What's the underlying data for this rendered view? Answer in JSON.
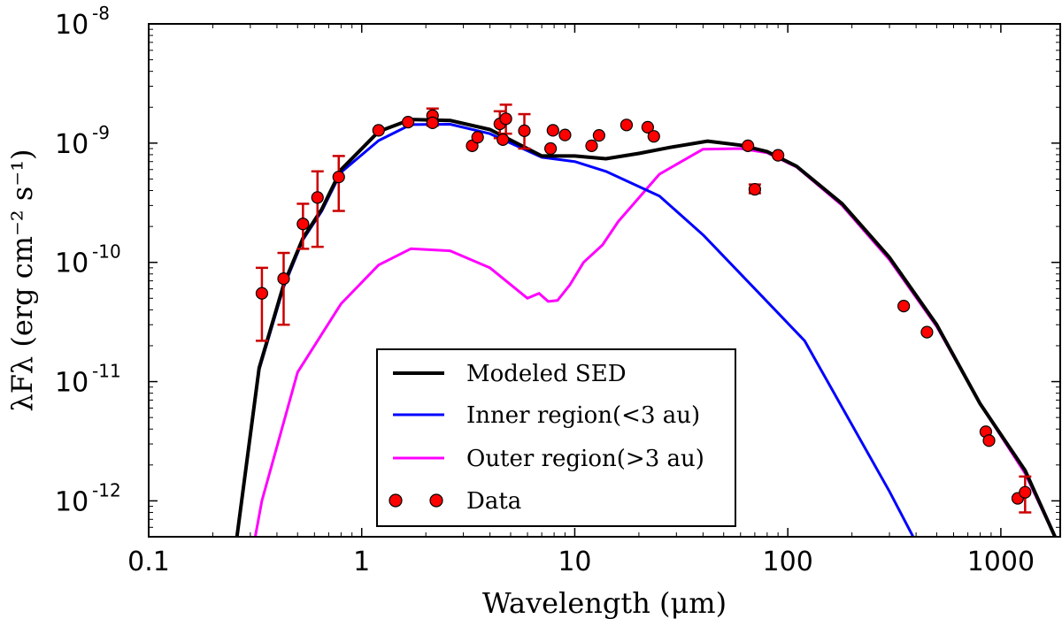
{
  "chart_data": {
    "type": "line",
    "title": "",
    "xlabel": "Wavelength (μm)",
    "ylabel": "λFλ (erg cm⁻² s⁻¹)",
    "xscale": "log",
    "yscale": "log",
    "xlim": [
      0.1,
      1900
    ],
    "ylim": [
      5e-13,
      1e-08
    ],
    "x_ticks": [
      {
        "value": 0.1,
        "label": "0.1"
      },
      {
        "value": 1,
        "label": "1"
      },
      {
        "value": 10,
        "label": "10"
      },
      {
        "value": 100,
        "label": "100"
      },
      {
        "value": 1000,
        "label": "1000"
      }
    ],
    "y_ticks": [
      {
        "value": 1e-08,
        "base": "10",
        "exp": "-8"
      },
      {
        "value": 1e-09,
        "base": "10",
        "exp": "-9"
      },
      {
        "value": 1e-10,
        "base": "10",
        "exp": "-10"
      },
      {
        "value": 1e-11,
        "base": "10",
        "exp": "-11"
      },
      {
        "value": 1e-12,
        "base": "10",
        "exp": "-12"
      }
    ],
    "legend_position": "lower-center",
    "series": [
      {
        "name": "Modeled SED",
        "color": "#000000",
        "width": 4,
        "x": [
          0.25,
          0.33,
          0.43,
          0.53,
          0.65,
          0.8,
          1.2,
          1.7,
          2.6,
          4.0,
          7.0,
          10.0,
          14.0,
          20.0,
          28.0,
          42.0,
          60.0,
          80.0,
          110.0,
          180.0,
          300.0,
          500.0,
          800.0,
          1300.0,
          1900.0
        ],
        "y": [
          3e-13,
          1.3e-11,
          6.5e-11,
          1.6e-10,
          2.8e-10,
          6e-10,
          1.25e-09,
          1.58e-09,
          1.55e-09,
          1.3e-09,
          7.8e-10,
          7.8e-10,
          7.4e-10,
          8.2e-10,
          9.2e-10,
          1.04e-09,
          9.6e-10,
          8.5e-10,
          6.4e-10,
          3.1e-10,
          1.1e-10,
          3e-11,
          6.5e-12,
          1.8e-12,
          4e-13
        ]
      },
      {
        "name": "Inner region(<3 au)",
        "color": "#0000ff",
        "width": 3,
        "x": [
          0.25,
          0.33,
          0.43,
          0.53,
          0.65,
          0.8,
          1.2,
          1.7,
          2.6,
          4.0,
          7.0,
          10.0,
          14.0,
          25.0,
          40.0,
          70.0,
          120.0,
          300.0,
          450.0
        ],
        "y": [
          3e-13,
          1.25e-11,
          6.2e-11,
          1.55e-10,
          2.7e-10,
          5.7e-10,
          1.05e-09,
          1.43e-09,
          1.44e-09,
          1.2e-09,
          7.6e-10,
          7e-10,
          5.8e-10,
          3.6e-10,
          1.7e-10,
          6e-11,
          2.2e-11,
          1.2e-12,
          3e-13
        ]
      },
      {
        "name": "Outer region(>3 au)",
        "color": "#ff00ff",
        "width": 3,
        "x": [
          0.3,
          0.34,
          0.5,
          0.8,
          1.2,
          1.7,
          2.6,
          4.0,
          6.0,
          6.8,
          7.5,
          8.3,
          9.5,
          11.0,
          13.5,
          16.0,
          25.0,
          40.0,
          60.0,
          80.0,
          110.0,
          180.0,
          300.0,
          500.0,
          800.0,
          1300.0,
          1900.0
        ],
        "y": [
          3e-13,
          1e-12,
          1.2e-11,
          4.5e-11,
          9.5e-11,
          1.3e-10,
          1.25e-10,
          9e-11,
          5e-11,
          5.5e-11,
          4.7e-11,
          4.8e-11,
          6.5e-11,
          1e-10,
          1.4e-10,
          2.2e-10,
          5.5e-10,
          8.9e-10,
          9e-10,
          8.3e-10,
          6.3e-10,
          3e-10,
          1.05e-10,
          2.9e-11,
          6.5e-12,
          1.7e-12,
          4e-13
        ]
      }
    ],
    "scatter": {
      "name": "Data",
      "color": "#ff0000",
      "errorbar_color": "#cc0000",
      "points": [
        {
          "x": 0.34,
          "y": 5.5e-11,
          "lo": 2.2e-11,
          "hi": 9e-11
        },
        {
          "x": 0.43,
          "y": 7.3e-11,
          "lo": 3e-11,
          "hi": 1.2e-10
        },
        {
          "x": 0.53,
          "y": 2.1e-10,
          "lo": 1.3e-10,
          "hi": 3.1e-10
        },
        {
          "x": 0.62,
          "y": 3.5e-10,
          "lo": 1.35e-10,
          "hi": 5.8e-10
        },
        {
          "x": 0.78,
          "y": 5.2e-10,
          "lo": 2.7e-10,
          "hi": 7.8e-10
        },
        {
          "x": 1.2,
          "y": 1.28e-09
        },
        {
          "x": 1.65,
          "y": 1.5e-09
        },
        {
          "x": 2.15,
          "y": 1.7e-09,
          "lo": 1.4e-09,
          "hi": 1.95e-09
        },
        {
          "x": 2.15,
          "y": 1.48e-09
        },
        {
          "x": 3.3,
          "y": 9.5e-10
        },
        {
          "x": 3.5,
          "y": 1.12e-09
        },
        {
          "x": 4.45,
          "y": 1.45e-09,
          "lo": 1.1e-09,
          "hi": 1.85e-09
        },
        {
          "x": 4.6,
          "y": 1.07e-09
        },
        {
          "x": 4.75,
          "y": 1.6e-09,
          "lo": 1.2e-09,
          "hi": 2.1e-09
        },
        {
          "x": 5.8,
          "y": 1.27e-09,
          "lo": 9e-10,
          "hi": 1.75e-09
        },
        {
          "x": 7.7,
          "y": 9e-10
        },
        {
          "x": 7.9,
          "y": 1.28e-09
        },
        {
          "x": 9.0,
          "y": 1.17e-09
        },
        {
          "x": 12.0,
          "y": 9.5e-10
        },
        {
          "x": 13.0,
          "y": 1.16e-09
        },
        {
          "x": 17.5,
          "y": 1.42e-09
        },
        {
          "x": 22.0,
          "y": 1.36e-09
        },
        {
          "x": 23.5,
          "y": 1.14e-09
        },
        {
          "x": 65.0,
          "y": 9.5e-10
        },
        {
          "x": 70.0,
          "y": 4.1e-10,
          "lo": 3.8e-10,
          "hi": 4.5e-10
        },
        {
          "x": 90.0,
          "y": 7.9e-10
        },
        {
          "x": 350.0,
          "y": 4.3e-11
        },
        {
          "x": 450.0,
          "y": 2.6e-11
        },
        {
          "x": 850.0,
          "y": 3.8e-12
        },
        {
          "x": 880.0,
          "y": 3.2e-12
        },
        {
          "x": 1200.0,
          "y": 1.05e-12
        },
        {
          "x": 1300.0,
          "y": 1.18e-12,
          "lo": 8e-13,
          "hi": 1.6e-12
        }
      ]
    }
  }
}
